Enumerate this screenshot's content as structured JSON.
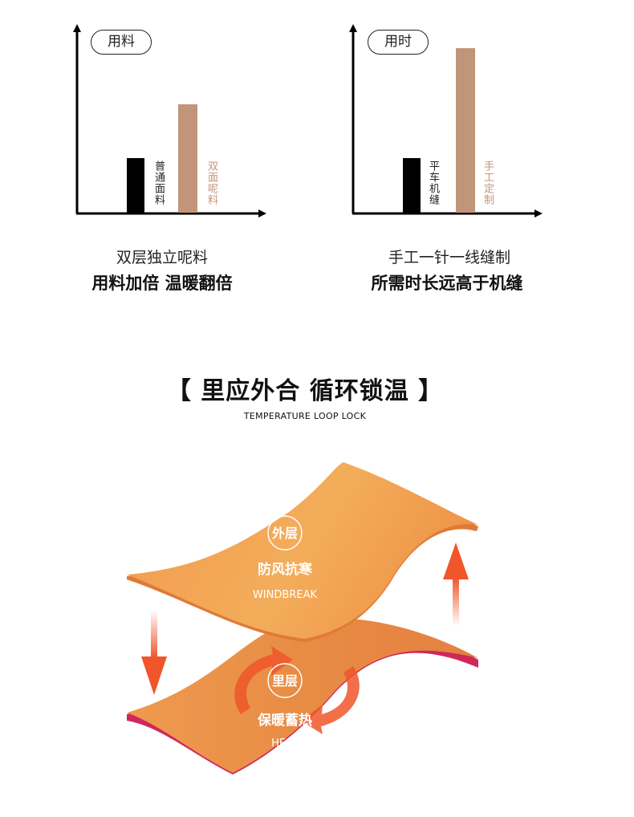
{
  "charts": [
    {
      "tag": "用料",
      "bars": [
        {
          "label": "普通面料",
          "level": 0.29,
          "color": "#000000"
        },
        {
          "label": "双面呢料",
          "level": 0.58,
          "color": "#c1957a"
        }
      ],
      "caption_line1": "双层独立呢料",
      "caption_line2": "用料加倍 温暖翻倍"
    },
    {
      "tag": "用时",
      "bars": [
        {
          "label": "平车机缝",
          "level": 0.29,
          "color": "#000000"
        },
        {
          "label": "手工定制",
          "level": 0.88,
          "color": "#c1957a"
        }
      ],
      "caption_line1": "手工一针一线缝制",
      "caption_line2": "所需时长远高于机缝"
    }
  ],
  "section": {
    "title": "【 里应外合 循环锁温 】",
    "subtitle": "TEMPERATURE LOOP LOCK"
  },
  "diagram": {
    "outer": {
      "badge": "外层",
      "title": "防风抗寒",
      "en": "WINDBREAK"
    },
    "inner": {
      "badge": "里层",
      "title": "保暖蓄热",
      "en": "HEAT"
    },
    "colors": {
      "sheet": "#f0954a",
      "arrow": "#f0562a",
      "edge": "#d0285a"
    }
  }
}
